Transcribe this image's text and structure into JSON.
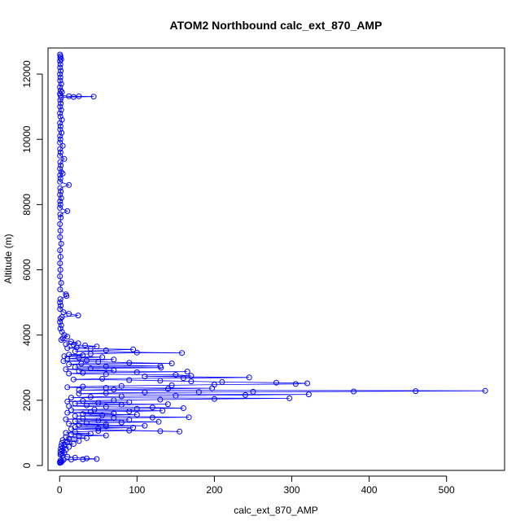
{
  "chart_data": {
    "type": "scatter",
    "title": "ATOM2 Northbound calc_ext_870_AMP",
    "xlabel": "calc_ext_870_AMP",
    "ylabel": "Altitude (m)",
    "xlim": [
      -15,
      575
    ],
    "ylim": [
      -150,
      12800
    ],
    "x_ticks": [
      0,
      100,
      200,
      300,
      400,
      500
    ],
    "y_ticks": [
      0,
      2000,
      4000,
      6000,
      8000,
      10000,
      12000
    ],
    "x_tick_labels": [
      "0",
      "100",
      "200",
      "300",
      "400",
      "500"
    ],
    "y_tick_labels": [
      "0",
      "2000",
      "4000",
      "6000",
      "8000",
      "10000",
      "12000"
    ],
    "series_color": "#0000ff",
    "marker": "open-circle",
    "connected": true,
    "grid": false,
    "series": [
      {
        "points": [
          [
            0.5,
            12600
          ],
          [
            1.2,
            12550
          ],
          [
            0.8,
            12500
          ],
          [
            2,
            12450
          ],
          [
            0.5,
            12400
          ],
          [
            1,
            12300
          ],
          [
            0.6,
            12200
          ],
          [
            1.5,
            12100
          ],
          [
            0.5,
            12000
          ],
          [
            1,
            11900
          ],
          [
            0.7,
            11800
          ],
          [
            2,
            11700
          ],
          [
            0.5,
            11600
          ],
          [
            1.3,
            11500
          ],
          [
            3,
            11450
          ],
          [
            0.5,
            11400
          ],
          [
            1,
            11350
          ],
          [
            12,
            11320
          ],
          [
            25,
            11320
          ],
          [
            44,
            11310
          ],
          [
            18,
            11300
          ],
          [
            2,
            11280
          ],
          [
            0.8,
            11200
          ],
          [
            1.5,
            11100
          ],
          [
            0.6,
            11000
          ],
          [
            2,
            10900
          ],
          [
            0.5,
            10800
          ],
          [
            1,
            10700
          ],
          [
            3,
            10600
          ],
          [
            0.5,
            10500
          ],
          [
            1.2,
            10400
          ],
          [
            0.7,
            10300
          ],
          [
            2.5,
            10200
          ],
          [
            0.6,
            10100
          ],
          [
            1,
            10000
          ],
          [
            0.5,
            9900
          ],
          [
            4,
            9800
          ],
          [
            0.6,
            9700
          ],
          [
            1.2,
            9600
          ],
          [
            0.5,
            9500
          ],
          [
            6,
            9400
          ],
          [
            0.8,
            9300
          ],
          [
            1.5,
            9200
          ],
          [
            0.5,
            9100
          ],
          [
            2,
            9000
          ],
          [
            4,
            8950
          ],
          [
            0.6,
            8900
          ],
          [
            1,
            8800
          ],
          [
            0.5,
            8700
          ],
          [
            12,
            8600
          ],
          [
            0.7,
            8500
          ],
          [
            1.5,
            8400
          ],
          [
            0.5,
            8300
          ],
          [
            2,
            8200
          ],
          [
            0.6,
            8100
          ],
          [
            1,
            8000
          ],
          [
            0.5,
            7900
          ],
          [
            10,
            7800
          ],
          [
            0.8,
            7700
          ],
          [
            1.5,
            7600
          ],
          [
            0.5,
            7400
          ],
          [
            1,
            7200
          ],
          [
            0.6,
            7000
          ],
          [
            2,
            6800
          ],
          [
            0.5,
            6600
          ],
          [
            1.2,
            6400
          ],
          [
            0.6,
            6200
          ],
          [
            1,
            6000
          ],
          [
            0.5,
            5800
          ],
          [
            2,
            5600
          ],
          [
            0.7,
            5400
          ],
          [
            8,
            5250
          ],
          [
            9,
            5200
          ],
          [
            1,
            5100
          ],
          [
            0.5,
            5000
          ],
          [
            1.5,
            4900
          ],
          [
            0.6,
            4800
          ],
          [
            5,
            4700
          ],
          [
            12,
            4650
          ],
          [
            24,
            4600
          ],
          [
            3,
            4550
          ],
          [
            1,
            4500
          ],
          [
            0.5,
            4400
          ],
          [
            2,
            4300
          ],
          [
            1,
            4200
          ],
          [
            3,
            4100
          ],
          [
            6,
            4000
          ],
          [
            10,
            3950
          ],
          [
            4,
            3900
          ],
          [
            2,
            3850
          ],
          [
            15,
            3800
          ],
          [
            24,
            3750
          ],
          [
            8,
            3720
          ],
          [
            18,
            3700
          ],
          [
            33,
            3680
          ],
          [
            48,
            3650
          ],
          [
            22,
            3620
          ],
          [
            10,
            3600
          ],
          [
            40,
            3580
          ],
          [
            95,
            3560
          ],
          [
            60,
            3530
          ],
          [
            20,
            3500
          ],
          [
            158,
            3450
          ],
          [
            100,
            3460
          ],
          [
            40,
            3420
          ],
          [
            12,
            3400
          ],
          [
            30,
            3380
          ],
          [
            6,
            3350
          ],
          [
            55,
            3320
          ],
          [
            25,
            3300
          ],
          [
            10,
            3270
          ],
          [
            70,
            3250
          ],
          [
            35,
            3220
          ],
          [
            5,
            3200
          ],
          [
            50,
            3180
          ],
          [
            90,
            3150
          ],
          [
            145,
            3130
          ],
          [
            28,
            3120
          ],
          [
            12,
            3100
          ],
          [
            130,
            3050
          ],
          [
            60,
            3040
          ],
          [
            20,
            3020
          ],
          [
            131,
            3000
          ],
          [
            40,
            2980
          ],
          [
            8,
            2950
          ],
          [
            70,
            2920
          ],
          [
            25,
            2900
          ],
          [
            165,
            2880
          ],
          [
            100,
            2860
          ],
          [
            30,
            2840
          ],
          [
            12,
            2820
          ],
          [
            60,
            2800
          ],
          [
            150,
            2780
          ],
          [
            170,
            2750
          ],
          [
            110,
            2730
          ],
          [
            245,
            2700
          ],
          [
            160,
            2680
          ],
          [
            55,
            2660
          ],
          [
            18,
            2640
          ],
          [
            90,
            2620
          ],
          [
            130,
            2600
          ],
          [
            170,
            2580
          ],
          [
            210,
            2560
          ],
          [
            280,
            2540
          ],
          [
            320,
            2520
          ],
          [
            305,
            2500
          ],
          [
            200,
            2480
          ],
          [
            145,
            2460
          ],
          [
            80,
            2440
          ],
          [
            30,
            2420
          ],
          [
            10,
            2400
          ],
          [
            60,
            2380
          ],
          [
            197,
            2370
          ],
          [
            140,
            2350
          ],
          [
            70,
            2330
          ],
          [
            25,
            2310
          ],
          [
            550,
            2290
          ],
          [
            460,
            2280
          ],
          [
            380,
            2270
          ],
          [
            250,
            2260
          ],
          [
            180,
            2250
          ],
          [
            110,
            2240
          ],
          [
            60,
            2220
          ],
          [
            25,
            2200
          ],
          [
            322,
            2180
          ],
          [
            240,
            2160
          ],
          [
            150,
            2140
          ],
          [
            80,
            2120
          ],
          [
            40,
            2100
          ],
          [
            15,
            2080
          ],
          [
            297,
            2060
          ],
          [
            200,
            2040
          ],
          [
            130,
            2020
          ],
          [
            70,
            2000
          ],
          [
            30,
            1980
          ],
          [
            10,
            1960
          ],
          [
            90,
            1940
          ],
          [
            50,
            1920
          ],
          [
            20,
            1900
          ],
          [
            140,
            1880
          ],
          [
            80,
            1860
          ],
          [
            35,
            1840
          ],
          [
            12,
            1820
          ],
          [
            60,
            1800
          ],
          [
            120,
            1780
          ],
          [
            160,
            1760
          ],
          [
            100,
            1740
          ],
          [
            45,
            1720
          ],
          [
            15,
            1700
          ],
          [
            133,
            1680
          ],
          [
            90,
            1660
          ],
          [
            40,
            1640
          ],
          [
            10,
            1620
          ],
          [
            70,
            1600
          ],
          [
            30,
            1580
          ],
          [
            100,
            1560
          ],
          [
            55,
            1540
          ],
          [
            20,
            1520
          ],
          [
            167,
            1480
          ],
          [
            120,
            1470
          ],
          [
            70,
            1460
          ],
          [
            30,
            1440
          ],
          [
            8,
            1420
          ],
          [
            90,
            1400
          ],
          [
            50,
            1380
          ],
          [
            20,
            1360
          ],
          [
            128,
            1340
          ],
          [
            80,
            1320
          ],
          [
            35,
            1300
          ],
          [
            12,
            1280
          ],
          [
            60,
            1260
          ],
          [
            25,
            1240
          ],
          [
            110,
            1220
          ],
          [
            60,
            1200
          ],
          [
            20,
            1180
          ],
          [
            95,
            1160
          ],
          [
            50,
            1140
          ],
          [
            15,
            1120
          ],
          [
            155,
            1040
          ],
          [
            130,
            1050
          ],
          [
            90,
            1070
          ],
          [
            50,
            1060
          ],
          [
            20,
            1030
          ],
          [
            8,
            1000
          ],
          [
            40,
            980
          ],
          [
            15,
            950
          ],
          [
            60,
            920
          ],
          [
            25,
            900
          ],
          [
            8,
            870
          ],
          [
            35,
            840
          ],
          [
            12,
            810
          ],
          [
            4,
            780
          ],
          [
            25,
            750
          ],
          [
            10,
            720
          ],
          [
            3,
            690
          ],
          [
            18,
            660
          ],
          [
            6,
            630
          ],
          [
            2,
            600
          ],
          [
            12,
            570
          ],
          [
            4,
            540
          ],
          [
            1.5,
            510
          ],
          [
            8,
            480
          ],
          [
            3,
            450
          ],
          [
            1,
            420
          ],
          [
            6,
            390
          ],
          [
            2,
            360
          ],
          [
            1,
            330
          ],
          [
            4,
            300
          ],
          [
            10,
            270
          ],
          [
            20,
            240
          ],
          [
            35,
            220
          ],
          [
            48,
            200
          ],
          [
            30,
            190
          ],
          [
            15,
            180
          ],
          [
            5,
            170
          ],
          [
            1,
            150
          ],
          [
            3,
            130
          ],
          [
            0.5,
            110
          ],
          [
            2,
            100
          ],
          [
            0.5,
            80
          ]
        ]
      }
    ]
  }
}
